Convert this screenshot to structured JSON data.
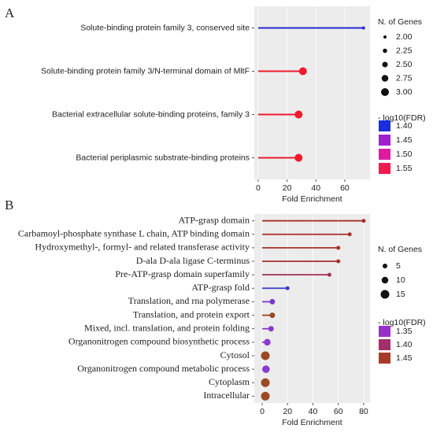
{
  "chart_data": [
    {
      "type": "lollipop",
      "panel_label": "A",
      "xlabel": "Fold Enrichment",
      "categories": [
        "Solute-binding protein family 3, conserved site",
        "Solute-binding protein  family 3/N-terminal domain of MltF",
        "Bacterial extracellular solute-binding proteins, family 3",
        "Bacterial periplasmic substrate-binding proteins"
      ],
      "values": [
        73,
        31,
        28,
        28
      ],
      "sizes": [
        2,
        3,
        3,
        3
      ],
      "colors": [
        "#2a2ad0",
        "#ee1b2e",
        "#ee1b2e",
        "#ee1b2e"
      ],
      "xlim": [
        -2.7,
        77.5
      ],
      "xticks": [
        0,
        20,
        40,
        60
      ],
      "grid": true,
      "size_legend": {
        "title": "N. of Genes",
        "values": [
          {
            "value": 2,
            "label": "2.00"
          },
          {
            "value": 2.25,
            "label": "2.25"
          },
          {
            "value": 2.5,
            "label": "2.50"
          },
          {
            "value": 2.75,
            "label": "2.75"
          },
          {
            "value": 3,
            "label": "3.00"
          }
        ]
      },
      "color_legend": {
        "title": "- log10(FDR)",
        "values": [
          {
            "value": 1.4,
            "label": "1.40"
          },
          1.45,
          {
            "value": 1.5,
            "label": "1.50"
          },
          1.55
        ],
        "colors": [
          "#1a2ee0",
          "#a020d0",
          "#e01aa0",
          "#f01a50"
        ]
      }
    },
    {
      "type": "lollipop",
      "panel_label": "B",
      "xlabel": "Fold Enrichment",
      "categories": [
        "ATP-grasp domain",
        "Carbamoyl-phosphate synthase L chain, ATP binding domain",
        "Hydroxymethyl-, formyl- and related transferase activity",
        "D-ala D-ala ligase C-terminus",
        "Pre-ATP-grasp domain superfamily",
        "ATP-grasp fold",
        "Translation, and rna polymerase",
        "Translation, and protein export",
        "Mixed, incl. translation, and protein folding",
        "Organonitrogen compound biosynthetic process",
        "Cytosol",
        "Organonitrogen compound metabolic process",
        "Cytoplasm",
        "Intracellular"
      ],
      "values": [
        80,
        69,
        60,
        60,
        53,
        20,
        8,
        8,
        7,
        4,
        2.5,
        3,
        2.5,
        2.5
      ],
      "sizes": [
        3,
        3,
        3,
        3,
        3,
        3,
        7,
        7,
        7,
        10,
        15,
        12,
        15,
        15
      ],
      "colors": [
        "#a8302a",
        "#a8302a",
        "#a8302a",
        "#a8302a",
        "#a03050",
        "#3a3ad0",
        "#7a3ad0",
        "#9a4a22",
        "#8a3ad0",
        "#8a3ad0",
        "#9a4a22",
        "#8a3ad0",
        "#9a4a22",
        "#9a4a22"
      ],
      "xlim": [
        -6.2,
        85
      ],
      "xticks": [
        0,
        20,
        40,
        60,
        80
      ],
      "grid": true,
      "size_legend": {
        "title": "N. of Genes",
        "values": [
          5,
          10,
          15
        ]
      },
      "color_legend": {
        "title": "- log10(FDR)",
        "values": [
          1.35,
          {
            "value": 1.4,
            "label": "1.40"
          },
          1.45
        ],
        "colors": [
          "#9a30cc",
          "#a0306a",
          "#a83a2a"
        ]
      }
    }
  ]
}
